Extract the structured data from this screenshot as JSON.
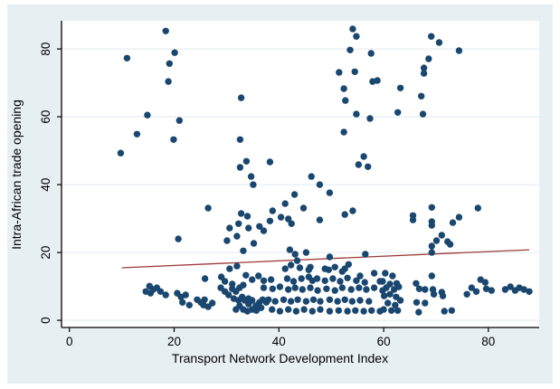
{
  "figure": {
    "page_background": "#ffffff",
    "region_background": "#e8eff3",
    "plot_background": "#ffffff",
    "axis_color": "#000000",
    "grid_color": "#dfeaf0",
    "text_color": "#000000"
  },
  "chart_data": {
    "type": "scatter",
    "title": "",
    "xlabel": "Transport Network Development Index",
    "ylabel": "Intra-African trade opening",
    "x_ticks": [
      0,
      20,
      40,
      60,
      80
    ],
    "y_ticks": [
      0,
      20,
      40,
      60,
      80
    ],
    "xlim": [
      -1.5,
      89.7
    ],
    "ylim": [
      -2.1,
      88.3
    ],
    "grid": "horizontal-only",
    "legend": "none",
    "series": [
      {
        "name": "observations",
        "type": "scatter",
        "marker_color": "#1a476f",
        "marker_radius": 3.7,
        "points": [
          [
            9.8,
            49.3
          ],
          [
            11.0,
            77.3
          ],
          [
            12.9,
            54.9
          ],
          [
            14.9,
            60.5
          ],
          [
            18.4,
            85.3
          ],
          [
            18.9,
            70.4
          ],
          [
            19.1,
            75.7
          ],
          [
            19.9,
            53.3
          ],
          [
            20.1,
            78.9
          ],
          [
            21.0,
            58.9
          ],
          [
            20.8,
            24.0
          ],
          [
            26.5,
            33.1
          ],
          [
            25.9,
            12.3
          ],
          [
            29.0,
            12.8
          ],
          [
            29.7,
            11.5
          ],
          [
            32.8,
            65.6
          ],
          [
            32.6,
            53.3
          ],
          [
            33.8,
            46.9
          ],
          [
            32.6,
            45.1
          ],
          [
            38.3,
            46.7
          ],
          [
            34.7,
            42.4
          ],
          [
            35.1,
            40.0
          ],
          [
            30.6,
            27.2
          ],
          [
            30.1,
            23.5
          ],
          [
            32.0,
            24.8
          ],
          [
            32.3,
            28.5
          ],
          [
            32.8,
            31.5
          ],
          [
            34.0,
            30.7
          ],
          [
            34.2,
            27.2
          ],
          [
            35.2,
            22.7
          ],
          [
            36.3,
            27.7
          ],
          [
            37.1,
            26.4
          ],
          [
            38.3,
            29.3
          ],
          [
            38.8,
            32.3
          ],
          [
            40.4,
            30.4
          ],
          [
            41.2,
            34.4
          ],
          [
            41.8,
            29.9
          ],
          [
            42.4,
            28.5
          ],
          [
            43.0,
            37.1
          ],
          [
            44.7,
            33.1
          ],
          [
            46.2,
            42.4
          ],
          [
            47.8,
            40.0
          ],
          [
            47.8,
            29.6
          ],
          [
            49.7,
            37.6
          ],
          [
            52.6,
            31.2
          ],
          [
            54.1,
            32.3
          ],
          [
            33.2,
            20.5
          ],
          [
            42.1,
            20.8
          ],
          [
            43.1,
            19.5
          ],
          [
            43.5,
            17.6
          ],
          [
            45.2,
            20.0
          ],
          [
            49.7,
            18.7
          ],
          [
            56.5,
            19.5
          ],
          [
            41.2,
            15.2
          ],
          [
            42.3,
            16.3
          ],
          [
            44.0,
            15.5
          ],
          [
            46.0,
            15.7
          ],
          [
            48.8,
            15.2
          ],
          [
            50.7,
            15.7
          ],
          [
            52.6,
            15.2
          ],
          [
            53.3,
            16.5
          ],
          [
            30.6,
            15.2
          ],
          [
            32.0,
            16.0
          ],
          [
            54.1,
            85.9
          ],
          [
            54.8,
            83.7
          ],
          [
            53.6,
            79.7
          ],
          [
            57.6,
            78.7
          ],
          [
            51.5,
            73.1
          ],
          [
            54.5,
            73.3
          ],
          [
            57.9,
            70.4
          ],
          [
            58.8,
            70.7
          ],
          [
            52.4,
            68.3
          ],
          [
            52.7,
            64.8
          ],
          [
            54.8,
            60.8
          ],
          [
            57.4,
            59.5
          ],
          [
            52.4,
            55.5
          ],
          [
            56.2,
            48.3
          ],
          [
            55.2,
            45.9
          ],
          [
            57.0,
            45.3
          ],
          [
            69.1,
            83.7
          ],
          [
            70.6,
            81.9
          ],
          [
            74.4,
            79.5
          ],
          [
            68.6,
            77.1
          ],
          [
            67.7,
            74.4
          ],
          [
            67.7,
            72.8
          ],
          [
            63.2,
            68.5
          ],
          [
            67.2,
            66.1
          ],
          [
            62.7,
            61.3
          ],
          [
            67.5,
            60.8
          ],
          [
            65.6,
            30.9
          ],
          [
            65.6,
            29.6
          ],
          [
            69.2,
            33.3
          ],
          [
            69.2,
            29.1
          ],
          [
            69.2,
            28.0
          ],
          [
            78.0,
            33.1
          ],
          [
            74.4,
            30.4
          ],
          [
            73.2,
            28.8
          ],
          [
            71.1,
            25.1
          ],
          [
            70.1,
            23.5
          ],
          [
            72.2,
            23.2
          ],
          [
            72.7,
            22.4
          ],
          [
            69.2,
            21.9
          ],
          [
            69.2,
            20.0
          ],
          [
            14.6,
            8.5
          ],
          [
            15.3,
            10.1
          ],
          [
            15.5,
            8.0
          ],
          [
            16.0,
            9.1
          ],
          [
            16.7,
            9.6
          ],
          [
            17.4,
            8.5
          ],
          [
            18.4,
            7.5
          ],
          [
            20.6,
            8.0
          ],
          [
            21.3,
            6.9
          ],
          [
            22.2,
            7.5
          ],
          [
            21.6,
            5.3
          ],
          [
            22.9,
            4.5
          ],
          [
            24.4,
            6.1
          ],
          [
            25.1,
            5.3
          ],
          [
            25.8,
            6.1
          ],
          [
            25.6,
            4.5
          ],
          [
            26.5,
            4.0
          ],
          [
            27.3,
            5.1
          ],
          [
            28.9,
            9.6
          ],
          [
            29.7,
            8.5
          ],
          [
            30.4,
            7.5
          ],
          [
            31.1,
            9.3
          ],
          [
            31.8,
            8.5
          ],
          [
            32.5,
            9.6
          ],
          [
            33.2,
            10.4
          ],
          [
            31.1,
            10.7
          ],
          [
            31.4,
            6.4
          ],
          [
            32.3,
            5.9
          ],
          [
            33.0,
            6.9
          ],
          [
            33.5,
            5.9
          ],
          [
            34.2,
            6.4
          ],
          [
            34.9,
            5.9
          ],
          [
            34.2,
            4.8
          ],
          [
            32.5,
            4.3
          ],
          [
            31.8,
            3.2
          ],
          [
            33.2,
            3.2
          ],
          [
            34.0,
            2.7
          ],
          [
            34.9,
            3.2
          ],
          [
            35.6,
            4.3
          ],
          [
            35.7,
            2.9
          ],
          [
            36.6,
            3.7
          ],
          [
            36.3,
            5.3
          ],
          [
            36.9,
            6.1
          ],
          [
            37.6,
            5.3
          ],
          [
            33.7,
            13.3
          ],
          [
            34.9,
            12.0
          ],
          [
            36.1,
            13.1
          ],
          [
            37.1,
            11.7
          ],
          [
            37.1,
            9.6
          ],
          [
            38.5,
            12.0
          ],
          [
            38.8,
            9.3
          ],
          [
            39.3,
            5.6
          ],
          [
            38.0,
            6.1
          ],
          [
            38.7,
            3.2
          ],
          [
            40.2,
            2.7
          ],
          [
            40.2,
            9.9
          ],
          [
            40.9,
            6.1
          ],
          [
            41.6,
            12.3
          ],
          [
            41.8,
            9.1
          ],
          [
            41.8,
            3.2
          ],
          [
            42.3,
            5.6
          ],
          [
            42.8,
            11.5
          ],
          [
            43.1,
            9.6
          ],
          [
            43.3,
            2.7
          ],
          [
            43.6,
            6.1
          ],
          [
            44.3,
            12.3
          ],
          [
            44.5,
            9.1
          ],
          [
            44.8,
            3.2
          ],
          [
            45.2,
            5.6
          ],
          [
            45.7,
            12.8
          ],
          [
            45.7,
            14.9
          ],
          [
            46.0,
            9.6
          ],
          [
            46.4,
            11.7
          ],
          [
            46.4,
            2.7
          ],
          [
            46.6,
            6.1
          ],
          [
            47.3,
            12.3
          ],
          [
            47.4,
            8.8
          ],
          [
            47.9,
            5.6
          ],
          [
            47.9,
            3.2
          ],
          [
            48.8,
            11.7
          ],
          [
            49.1,
            9.3
          ],
          [
            49.5,
            14.9
          ],
          [
            49.7,
            6.1
          ],
          [
            49.7,
            2.7
          ],
          [
            50.3,
            12.3
          ],
          [
            50.7,
            8.8
          ],
          [
            51.2,
            5.6
          ],
          [
            51.4,
            2.9
          ],
          [
            51.7,
            11.5
          ],
          [
            52.1,
            14.4
          ],
          [
            52.1,
            9.6
          ],
          [
            52.6,
            6.1
          ],
          [
            53.1,
            2.7
          ],
          [
            53.8,
            9.1
          ],
          [
            54.0,
            5.6
          ],
          [
            54.6,
            2.9
          ],
          [
            54.8,
            11.7
          ],
          [
            55.3,
            9.6
          ],
          [
            55.5,
            5.9
          ],
          [
            56.2,
            2.7
          ],
          [
            56.4,
            11.2
          ],
          [
            56.7,
            9.1
          ],
          [
            57.2,
            5.6
          ],
          [
            57.7,
            2.9
          ],
          [
            58.2,
            13.9
          ],
          [
            58.2,
            9.6
          ],
          [
            59.3,
            11.5
          ],
          [
            59.3,
            2.7
          ],
          [
            59.8,
            8.8
          ],
          [
            53.1,
            12.5
          ],
          [
            55.5,
            13.1
          ],
          [
            60.3,
            13.9
          ],
          [
            61.7,
            13.1
          ],
          [
            59.8,
            11.5
          ],
          [
            61.2,
            10.7
          ],
          [
            62.5,
            10.9
          ],
          [
            60.5,
            9.6
          ],
          [
            62.0,
            9.1
          ],
          [
            62.9,
            9.9
          ],
          [
            61.2,
            7.7
          ],
          [
            60.1,
            7.2
          ],
          [
            62.4,
            6.9
          ],
          [
            63.2,
            5.9
          ],
          [
            60.8,
            5.1
          ],
          [
            62.2,
            4.5
          ],
          [
            60.0,
            3.2
          ],
          [
            61.5,
            2.9
          ],
          [
            62.7,
            2.9
          ],
          [
            66.2,
            10.9
          ],
          [
            66.8,
            9.3
          ],
          [
            67.9,
            9.1
          ],
          [
            69.2,
            13.1
          ],
          [
            69.4,
            9.1
          ],
          [
            69.6,
            7.7
          ],
          [
            71.1,
            8.3
          ],
          [
            71.3,
            7.2
          ],
          [
            66.3,
            5.3
          ],
          [
            67.9,
            5.1
          ],
          [
            66.7,
            2.4
          ],
          [
            71.6,
            2.7
          ],
          [
            73.0,
            2.9
          ],
          [
            75.9,
            7.7
          ],
          [
            76.8,
            9.6
          ],
          [
            77.7,
            8.5
          ],
          [
            78.5,
            12.0
          ],
          [
            79.4,
            11.2
          ],
          [
            79.6,
            9.3
          ],
          [
            80.6,
            8.8
          ],
          [
            83.2,
            9.1
          ],
          [
            84.2,
            9.9
          ],
          [
            85.1,
            8.8
          ],
          [
            85.9,
            9.6
          ],
          [
            86.8,
            9.1
          ],
          [
            87.8,
            8.5
          ]
        ]
      },
      {
        "name": "fitted-line",
        "type": "line",
        "line_color": "#9e3a38",
        "points": [
          [
            10.0,
            15.5
          ],
          [
            87.8,
            20.8
          ]
        ]
      }
    ]
  }
}
